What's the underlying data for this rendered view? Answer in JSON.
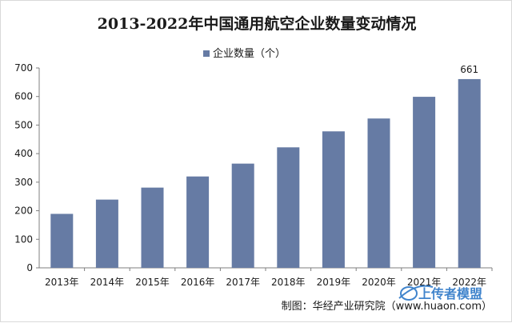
{
  "chart_data": {
    "type": "bar",
    "title": "2013-2022年中国通用航空企业数量变动情况",
    "legend": {
      "position": "top-center",
      "entries": [
        "企业数量（个）"
      ]
    },
    "categories": [
      "2013年",
      "2014年",
      "2015年",
      "2016年",
      "2017年",
      "2018年",
      "2019年",
      "2020年",
      "2021年",
      "2022年"
    ],
    "series": [
      {
        "name": "企业数量（个）",
        "values": [
          189,
          239,
          281,
          320,
          365,
          422,
          478,
          523,
          599,
          661
        ],
        "color": "#667ba4"
      }
    ],
    "data_labels": [
      {
        "index": 9,
        "text": "661"
      }
    ],
    "ylim": [
      0,
      700
    ],
    "yticks": [
      0,
      100,
      200,
      300,
      400,
      500,
      600,
      700
    ],
    "grid": false,
    "xlabel": "",
    "ylabel": ""
  },
  "source": "制图：华经产业研究院（www.huaon.com）",
  "watermark": {
    "text": "上传者模盟",
    "color": "#1f6fc4"
  }
}
